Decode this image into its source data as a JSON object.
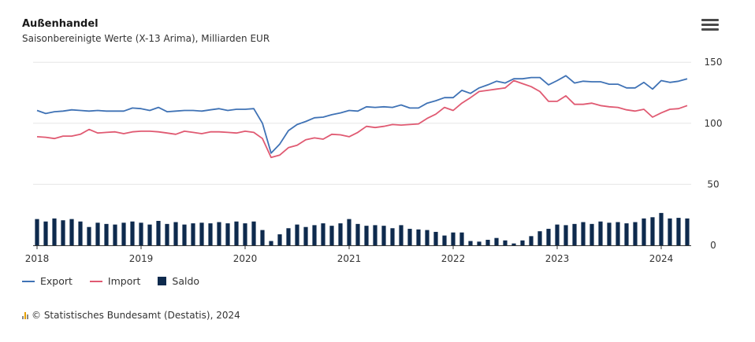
{
  "title": "Außenhandel",
  "subtitle": "Saisonbereinigte Werte (X-13 Arima), Milliarden EUR",
  "menu_icon": "hamburger-menu-icon",
  "legend": {
    "export": "Export",
    "import": "Import",
    "saldo": "Saldo"
  },
  "credit": "© Statistisches Bundesamt (Destatis), 2024",
  "colors": {
    "export": "#3f72b5",
    "import": "#e05a72",
    "saldo": "#0e2a4d",
    "grid": "#e6e6e6"
  },
  "chart_data": {
    "type": "line+bar",
    "title": "Außenhandel",
    "subtitle": "Saisonbereinigte Werte (X-13 Arima), Milliarden EUR",
    "x_start": "2018-01",
    "x_ticks": [
      "2018",
      "2019",
      "2020",
      "2021",
      "2022",
      "2023",
      "2024"
    ],
    "y_ticks": [
      0,
      50,
      100,
      150
    ],
    "ylim": [
      0,
      150
    ],
    "series": [
      {
        "name": "Export",
        "type": "line",
        "values": [
          110.5,
          108.0,
          109.5,
          110.0,
          111.0,
          110.5,
          110.0,
          110.5,
          110.0,
          110.0,
          110.0,
          112.5,
          112.0,
          110.5,
          113.0,
          109.5,
          110.0,
          110.5,
          110.5,
          110.0,
          111.0,
          112.0,
          110.5,
          111.5,
          111.5,
          112.0,
          100.0,
          75.5,
          83.0,
          94.0,
          99.0,
          101.5,
          104.5,
          105.0,
          107.0,
          108.5,
          110.5,
          110.0,
          113.5,
          113.0,
          113.5,
          113.0,
          115.0,
          112.5,
          112.5,
          116.5,
          118.5,
          121.0,
          121.0,
          127.0,
          124.5,
          129.0,
          131.5,
          134.5,
          133.0,
          136.5,
          136.5,
          137.5,
          137.5,
          131.5,
          135.0,
          139.0,
          133.0,
          134.5,
          134.0,
          134.0,
          132.0,
          132.0,
          129.0,
          129.0,
          133.5,
          128.0,
          135.0,
          133.5,
          134.5,
          136.5
        ]
      },
      {
        "name": "Import",
        "type": "line",
        "values": [
          89.0,
          88.5,
          87.5,
          89.5,
          89.5,
          91.0,
          95.0,
          92.0,
          92.5,
          93.0,
          91.5,
          93.0,
          93.5,
          93.5,
          93.0,
          92.0,
          91.0,
          93.5,
          92.5,
          91.5,
          93.0,
          93.0,
          92.5,
          92.0,
          93.5,
          92.5,
          87.5,
          72.0,
          74.0,
          80.0,
          82.0,
          86.5,
          88.0,
          87.0,
          91.0,
          90.5,
          89.0,
          92.5,
          97.5,
          96.5,
          97.5,
          99.0,
          98.5,
          99.0,
          99.5,
          104.0,
          107.5,
          113.0,
          110.5,
          116.5,
          121.0,
          126.0,
          127.0,
          128.0,
          129.0,
          135.0,
          132.5,
          130.0,
          126.0,
          118.0,
          118.0,
          122.5,
          115.5,
          115.5,
          116.5,
          114.5,
          113.5,
          113.0,
          111.0,
          110.0,
          111.5,
          105.0,
          108.5,
          111.5,
          112.0,
          114.5
        ]
      },
      {
        "name": "Saldo",
        "type": "bar",
        "values": [
          21.5,
          19.5,
          22.0,
          20.5,
          21.5,
          19.5,
          15.0,
          18.5,
          17.5,
          17.0,
          18.5,
          19.5,
          18.5,
          17.0,
          20.0,
          17.5,
          19.0,
          17.0,
          18.0,
          18.5,
          18.0,
          19.0,
          18.0,
          19.5,
          18.0,
          19.5,
          12.5,
          3.5,
          9.0,
          14.0,
          17.0,
          15.0,
          16.5,
          18.0,
          16.0,
          18.0,
          21.5,
          17.5,
          16.0,
          16.5,
          16.0,
          14.0,
          16.5,
          13.5,
          13.0,
          12.5,
          11.0,
          8.0,
          10.5,
          10.5,
          3.5,
          3.0,
          4.5,
          6.0,
          4.0,
          1.5,
          4.0,
          7.5,
          11.5,
          13.5,
          17.0,
          16.5,
          17.5,
          19.0,
          17.5,
          19.5,
          18.5,
          19.0,
          18.0,
          19.0,
          22.0,
          23.0,
          26.5,
          22.0,
          22.5,
          22.0
        ]
      }
    ]
  }
}
